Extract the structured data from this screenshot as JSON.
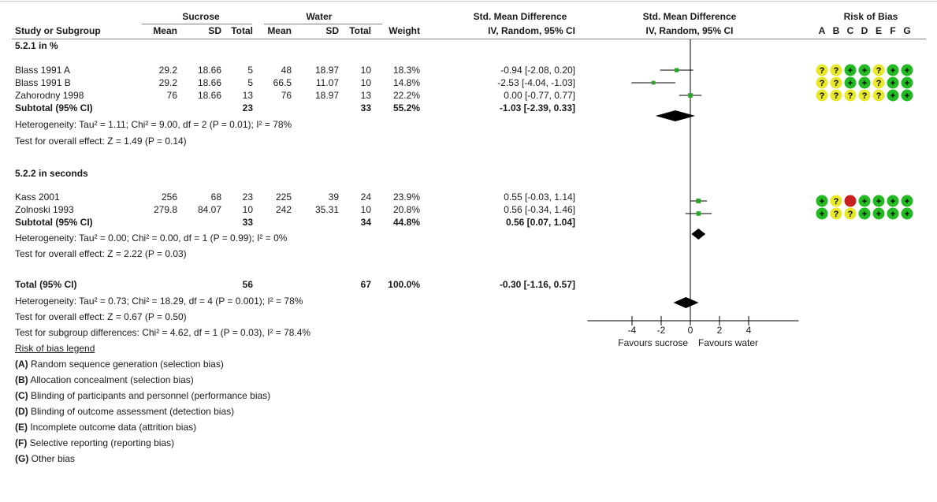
{
  "headers": {
    "group1": "Sucrose",
    "group2": "Water",
    "smd_title": "Std. Mean Difference",
    "smd_method": "IV, Random, 95% CI",
    "plot_title": "Std. Mean Difference",
    "plot_method": "IV, Random, 95% CI",
    "rob_title": "Risk of Bias",
    "study": "Study or Subgroup",
    "mean": "Mean",
    "sd": "SD",
    "total": "Total",
    "weight": "Weight",
    "rob_letters": [
      "A",
      "B",
      "C",
      "D",
      "E",
      "F",
      "G"
    ]
  },
  "subgroups": [
    {
      "title": "5.2.1 in %",
      "studies": [
        {
          "name": "Blass 1991 A",
          "m1": "29.2",
          "sd1": "18.66",
          "n1": "5",
          "m2": "48",
          "sd2": "18.97",
          "n2": "10",
          "weight": "18.3%",
          "ci_text": "-0.94 [-2.08, 0.20]",
          "rob": [
            "?",
            "?",
            "+",
            "+",
            "?",
            "+",
            "+"
          ]
        },
        {
          "name": "Blass 1991 B",
          "m1": "29.2",
          "sd1": "18.66",
          "n1": "5",
          "m2": "66.5",
          "sd2": "11.07",
          "n2": "10",
          "weight": "14.8%",
          "ci_text": "-2.53 [-4.04, -1.03]",
          "rob": [
            "?",
            "?",
            "+",
            "+",
            "?",
            "+",
            "+"
          ]
        },
        {
          "name": "Zahorodny 1998",
          "m1": "76",
          "sd1": "18.66",
          "n1": "13",
          "m2": "76",
          "sd2": "18.97",
          "n2": "13",
          "weight": "22.2%",
          "ci_text": "0.00 [-0.77, 0.77]",
          "rob": [
            "?",
            "?",
            "?",
            "?",
            "?",
            "+",
            "+"
          ]
        }
      ],
      "subtotal_label": "Subtotal (95% CI)",
      "subtotal_n1": "23",
      "subtotal_n2": "33",
      "subtotal_weight": "55.2%",
      "subtotal_ci_text": "-1.03 [-2.39, 0.33]",
      "heterogeneity": "Heterogeneity: Tau² = 1.11; Chi² = 9.00, df = 2 (P = 0.01); I² = 78%",
      "overall_effect": "Test for overall effect: Z = 1.49 (P = 0.14)"
    },
    {
      "title": "5.2.2 in seconds",
      "studies": [
        {
          "name": "Kass 2001",
          "m1": "256",
          "sd1": "68",
          "n1": "23",
          "m2": "225",
          "sd2": "39",
          "n2": "24",
          "weight": "23.9%",
          "ci_text": "0.55 [-0.03, 1.14]",
          "rob": [
            "+",
            "?",
            "-",
            "+",
            "+",
            "+",
            "+"
          ]
        },
        {
          "name": "Zolnoski 1993",
          "m1": "279.8",
          "sd1": "84.07",
          "n1": "10",
          "m2": "242",
          "sd2": "35.31",
          "n2": "10",
          "weight": "20.8%",
          "ci_text": "0.56 [-0.34, 1.46]",
          "rob": [
            "+",
            "?",
            "?",
            "+",
            "+",
            "+",
            "+"
          ]
        }
      ],
      "subtotal_label": "Subtotal (95% CI)",
      "subtotal_n1": "33",
      "subtotal_n2": "34",
      "subtotal_weight": "44.8%",
      "subtotal_ci_text": "0.56 [0.07, 1.04]",
      "heterogeneity": "Heterogeneity: Tau² = 0.00; Chi² = 0.00, df = 1 (P = 0.99); I² = 0%",
      "overall_effect": "Test for overall effect: Z = 2.22 (P = 0.03)"
    }
  ],
  "total": {
    "label": "Total (95% CI)",
    "n1": "56",
    "n2": "67",
    "weight": "100.0%",
    "ci_text": "-0.30 [-1.16, 0.57]",
    "heterogeneity": "Heterogeneity: Tau² = 0.73; Chi² = 18.29, df = 4 (P = 0.001); I² = 78%",
    "overall_effect": "Test for overall effect: Z = 0.67 (P = 0.50)",
    "subgroup_diff": "Test for subgroup differences: Chi² = 4.62, df = 1 (P = 0.03), I² = 78.4%"
  },
  "legend": {
    "title": "Risk of bias legend",
    "items": [
      {
        "key": "(A)",
        "text": " Random sequence generation (selection bias)"
      },
      {
        "key": "(B)",
        "text": " Allocation concealment (selection bias)"
      },
      {
        "key": "(C)",
        "text": " Blinding of participants and personnel (performance bias)"
      },
      {
        "key": "(D)",
        "text": " Blinding of outcome assessment (detection bias)"
      },
      {
        "key": "(E)",
        "text": " Incomplete outcome data (attrition bias)"
      },
      {
        "key": "(F)",
        "text": " Selective reporting (reporting bias)"
      },
      {
        "key": "(G)",
        "text": " Other bias"
      }
    ]
  },
  "colors": {
    "study_marker": "#2aa52a",
    "diamond": "#000000",
    "rob_low": "#22b922",
    "rob_unclear": "#e8e82a",
    "rob_high": "#c81e1e"
  },
  "chart_data": {
    "type": "forest",
    "measure": "Std. Mean Difference",
    "xlim": [
      -5,
      5
    ],
    "ticks": [
      -4,
      -2,
      0,
      2,
      4
    ],
    "tick_labels": [
      "-4",
      "-2",
      "0",
      "2",
      "4"
    ],
    "left_label": "Favours sucrose",
    "right_label": "Favours water",
    "studies": [
      {
        "name": "Blass 1991 A",
        "est": -0.94,
        "lo": -2.08,
        "hi": 0.2,
        "weight": 18.3
      },
      {
        "name": "Blass 1991 B",
        "est": -2.53,
        "lo": -4.04,
        "hi": -1.03,
        "weight": 14.8
      },
      {
        "name": "Zahorodny 1998",
        "est": 0.0,
        "lo": -0.77,
        "hi": 0.77,
        "weight": 22.2
      },
      {
        "name": "Kass 2001",
        "est": 0.55,
        "lo": -0.03,
        "hi": 1.14,
        "weight": 23.9
      },
      {
        "name": "Zolnoski 1993",
        "est": 0.56,
        "lo": -0.34,
        "hi": 1.46,
        "weight": 20.8
      }
    ],
    "pooled": [
      {
        "name": "Subtotal 5.2.1",
        "est": -1.03,
        "lo": -2.39,
        "hi": 0.33
      },
      {
        "name": "Subtotal 5.2.2",
        "est": 0.56,
        "lo": 0.07,
        "hi": 1.04
      },
      {
        "name": "Total",
        "est": -0.3,
        "lo": -1.16,
        "hi": 0.57
      }
    ]
  }
}
